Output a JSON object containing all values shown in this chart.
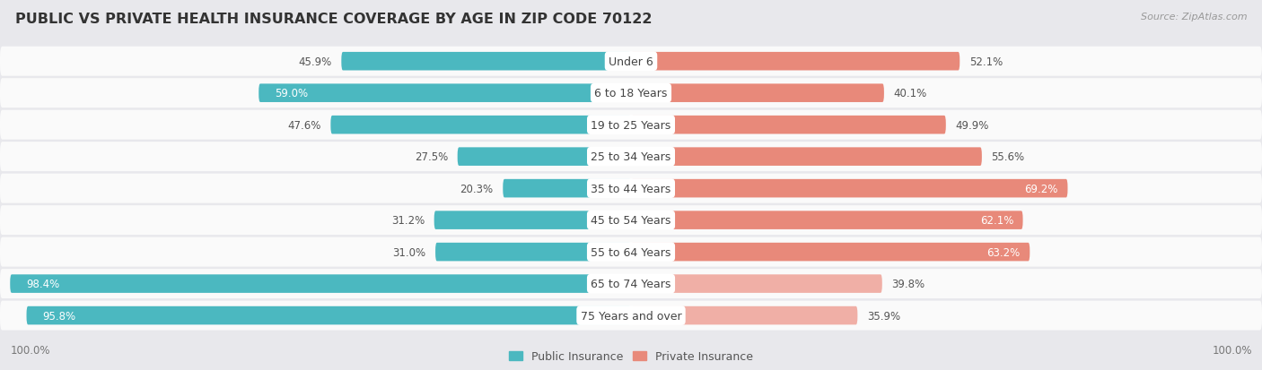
{
  "title": "PUBLIC VS PRIVATE HEALTH INSURANCE COVERAGE BY AGE IN ZIP CODE 70122",
  "source": "Source: ZipAtlas.com",
  "categories": [
    "Under 6",
    "6 to 18 Years",
    "19 to 25 Years",
    "25 to 34 Years",
    "35 to 44 Years",
    "45 to 54 Years",
    "55 to 64 Years",
    "65 to 74 Years",
    "75 Years and over"
  ],
  "public_values": [
    45.9,
    59.0,
    47.6,
    27.5,
    20.3,
    31.2,
    31.0,
    98.4,
    95.8
  ],
  "private_values": [
    52.1,
    40.1,
    49.9,
    55.6,
    69.2,
    62.1,
    63.2,
    39.8,
    35.9
  ],
  "public_color": "#4BB8C0",
  "private_color": "#E8897A",
  "private_color_light": "#F0AFA6",
  "bg_color": "#E8E8EC",
  "row_bg_color": "#F2F2F4",
  "row_inner_color": "#FAFAFA",
  "axis_label_left": "100.0%",
  "axis_label_right": "100.0%",
  "title_fontsize": 11.5,
  "source_fontsize": 8,
  "label_fontsize": 8.5,
  "category_fontsize": 9,
  "legend_fontsize": 9
}
